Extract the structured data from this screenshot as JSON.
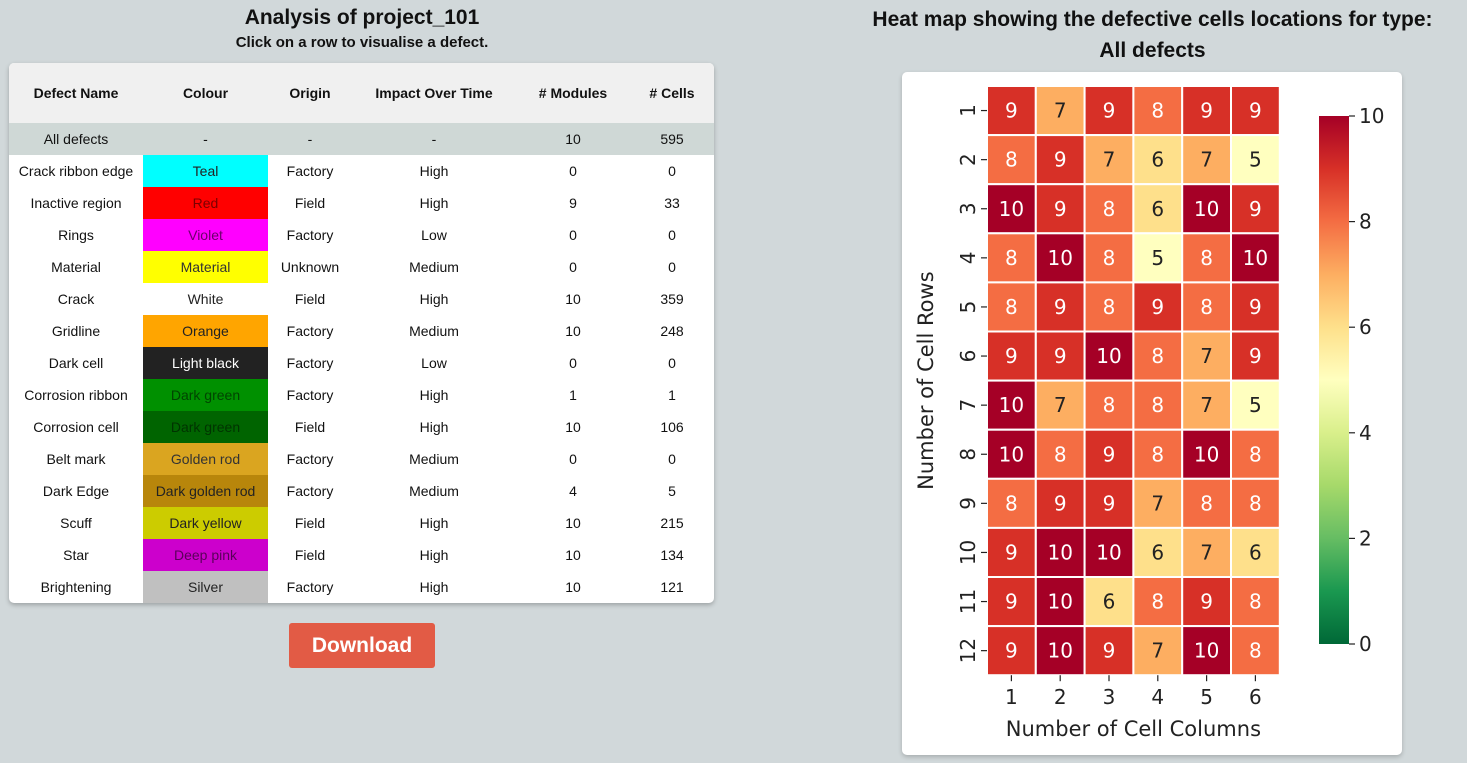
{
  "left_panel": {
    "title": "Analysis of project_101",
    "subtitle": "Click on a row to visualise a defect."
  },
  "table": {
    "headers": [
      "Defect Name",
      "Colour",
      "Origin",
      "Impact Over Time",
      "# Modules",
      "# Cells"
    ],
    "summary_row": {
      "name": "All defects",
      "colour": "-",
      "origin": "-",
      "impact": "-",
      "modules": "10",
      "cells": "595"
    },
    "rows": [
      {
        "name": "Crack ribbon edge",
        "colour": "Teal",
        "swatch": "#00ffff",
        "text_color": "#222222",
        "origin": "Factory",
        "impact": "High",
        "modules": "0",
        "cells": "0"
      },
      {
        "name": "Inactive region",
        "colour": "Red",
        "swatch": "#ff0000",
        "text_color": "#7a0000",
        "origin": "Field",
        "impact": "High",
        "modules": "9",
        "cells": "33"
      },
      {
        "name": "Rings",
        "colour": "Violet",
        "swatch": "#ff00ff",
        "text_color": "#6a006a",
        "origin": "Factory",
        "impact": "Low",
        "modules": "0",
        "cells": "0"
      },
      {
        "name": "Material",
        "colour": "Material",
        "swatch": "#ffff00",
        "text_color": "#333333",
        "origin": "Unknown",
        "impact": "Medium",
        "modules": "0",
        "cells": "0"
      },
      {
        "name": "Crack",
        "colour": "White",
        "swatch": "#ffffff",
        "text_color": "#222222",
        "origin": "Field",
        "impact": "High",
        "modules": "10",
        "cells": "359"
      },
      {
        "name": "Gridline",
        "colour": "Orange",
        "swatch": "#ffa500",
        "text_color": "#222222",
        "origin": "Factory",
        "impact": "Medium",
        "modules": "10",
        "cells": "248"
      },
      {
        "name": "Dark cell",
        "colour": "Light black",
        "swatch": "#222222",
        "text_color": "#ffffff",
        "origin": "Factory",
        "impact": "Low",
        "modules": "0",
        "cells": "0"
      },
      {
        "name": "Corrosion ribbon",
        "colour": "Dark green",
        "swatch": "#009000",
        "text_color": "#004400",
        "origin": "Factory",
        "impact": "High",
        "modules": "1",
        "cells": "1"
      },
      {
        "name": "Corrosion cell",
        "colour": "Dark green",
        "swatch": "#006400",
        "text_color": "#003300",
        "origin": "Field",
        "impact": "High",
        "modules": "10",
        "cells": "106"
      },
      {
        "name": "Belt mark",
        "colour": "Golden rod",
        "swatch": "#daa520",
        "text_color": "#333333",
        "origin": "Factory",
        "impact": "Medium",
        "modules": "0",
        "cells": "0"
      },
      {
        "name": "Dark Edge",
        "colour": "Dark golden rod",
        "swatch": "#b8860b",
        "text_color": "#222222",
        "origin": "Factory",
        "impact": "Medium",
        "modules": "4",
        "cells": "5"
      },
      {
        "name": "Scuff",
        "colour": "Dark yellow",
        "swatch": "#cccc00",
        "text_color": "#222222",
        "origin": "Field",
        "impact": "High",
        "modules": "10",
        "cells": "215"
      },
      {
        "name": "Star",
        "colour": "Deep pink",
        "swatch": "#cc00cc",
        "text_color": "#5a005a",
        "origin": "Field",
        "impact": "High",
        "modules": "10",
        "cells": "134"
      },
      {
        "name": "Brightening",
        "colour": "Silver",
        "swatch": "#c0c0c0",
        "text_color": "#222222",
        "origin": "Factory",
        "impact": "High",
        "modules": "10",
        "cells": "121"
      }
    ]
  },
  "download_label": "Download",
  "right_panel": {
    "title_line1": "Heat map showing the defective cells locations for type:",
    "title_line2": "All defects"
  },
  "chart_data": {
    "type": "heatmap",
    "xlabel": "Number of Cell Columns",
    "ylabel": "Number of Cell Rows",
    "x_labels": [
      "1",
      "2",
      "3",
      "4",
      "5",
      "6"
    ],
    "y_labels": [
      "1",
      "2",
      "3",
      "4",
      "5",
      "6",
      "7",
      "8",
      "9",
      "10",
      "11",
      "12"
    ],
    "values": [
      [
        9,
        7,
        9,
        8,
        9,
        9
      ],
      [
        8,
        9,
        7,
        6,
        7,
        5
      ],
      [
        10,
        9,
        8,
        6,
        10,
        9
      ],
      [
        8,
        10,
        8,
        5,
        8,
        10
      ],
      [
        8,
        9,
        8,
        9,
        8,
        9
      ],
      [
        9,
        9,
        10,
        8,
        7,
        9
      ],
      [
        10,
        7,
        8,
        8,
        7,
        5
      ],
      [
        10,
        8,
        9,
        8,
        10,
        8
      ],
      [
        8,
        9,
        9,
        7,
        8,
        8
      ],
      [
        9,
        10,
        10,
        6,
        7,
        6
      ],
      [
        9,
        10,
        6,
        8,
        9,
        8
      ],
      [
        9,
        10,
        9,
        7,
        10,
        8
      ]
    ],
    "vmin": 0,
    "vmax": 10,
    "colormap": "RdYlGn_r",
    "colorbar_ticks": [
      "0",
      "2",
      "4",
      "6",
      "8",
      "10"
    ]
  }
}
